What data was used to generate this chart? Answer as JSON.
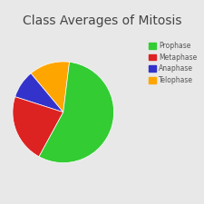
{
  "title": "Class Averages of Mitosis",
  "labels": [
    "Telophase",
    "Anaphase",
    "Metaphase",
    "Prophase"
  ],
  "sizes": [
    13,
    9,
    22,
    56
  ],
  "colors": [
    "#FFA500",
    "#3333CC",
    "#DD2222",
    "#33CC33"
  ],
  "legend_labels": [
    "Prophase",
    "Metaphase",
    "Anaphase",
    "Telophase"
  ],
  "legend_colors": [
    "#33CC33",
    "#DD2222",
    "#3333CC",
    "#FFA500"
  ],
  "background_color": "#e8e8e8",
  "title_fontsize": 10,
  "startangle": 83
}
